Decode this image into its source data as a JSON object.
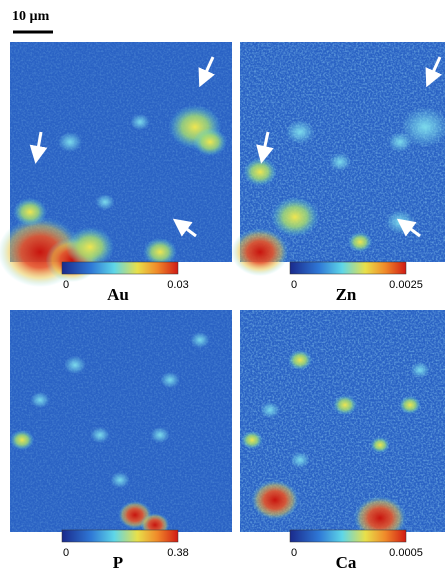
{
  "scale_bar": "10 µm",
  "panels": [
    {
      "element": "Au",
      "min": 0,
      "max": 0.03
    },
    {
      "element": "Zn",
      "min": 0,
      "max": 0.0025
    },
    {
      "element": "P",
      "min": 0,
      "max": 0.38
    },
    {
      "element": "Ca",
      "min": 0,
      "max": 0.0005
    }
  ]
}
